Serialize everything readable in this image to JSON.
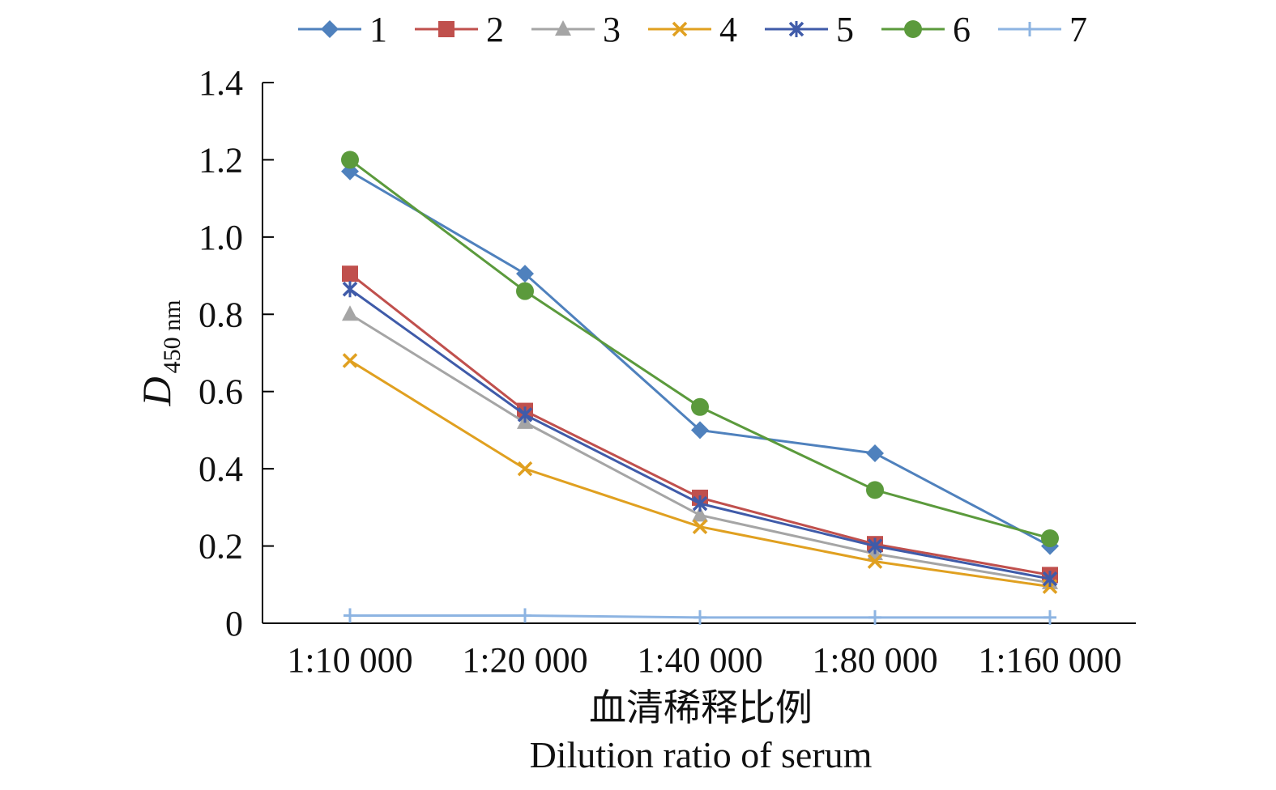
{
  "chart_data": {
    "type": "line",
    "categories": [
      "1:10 000",
      "1:20 000",
      "1:40 000",
      "1:80 000",
      "1:160 000"
    ],
    "series": [
      {
        "name": "1",
        "color": "#4f81bd",
        "marker": "diamond",
        "values": [
          1.17,
          0.905,
          0.5,
          0.44,
          0.2
        ]
      },
      {
        "name": "2",
        "color": "#c0504d",
        "marker": "square",
        "values": [
          0.905,
          0.55,
          0.325,
          0.205,
          0.125
        ]
      },
      {
        "name": "3",
        "color": "#a5a5a5",
        "marker": "triangle",
        "values": [
          0.8,
          0.52,
          0.28,
          0.18,
          0.105
        ]
      },
      {
        "name": "4",
        "color": "#e0a020",
        "marker": "x",
        "values": [
          0.68,
          0.4,
          0.25,
          0.16,
          0.095
        ]
      },
      {
        "name": "5",
        "color": "#3f5ba9",
        "marker": "star",
        "values": [
          0.865,
          0.54,
          0.31,
          0.2,
          0.115
        ]
      },
      {
        "name": "6",
        "color": "#5b9a3c",
        "marker": "circle",
        "values": [
          1.2,
          0.86,
          0.56,
          0.345,
          0.22
        ]
      },
      {
        "name": "7",
        "color": "#8db4e2",
        "marker": "plus",
        "values": [
          0.02,
          0.02,
          0.015,
          0.015,
          0.015
        ]
      }
    ],
    "xlabel": "血清稀释比例",
    "xlabel_en": "Dilution ratio of serum",
    "ylabel": "D",
    "ylabel_sub": "450 nm",
    "ylim": [
      0,
      1.4
    ],
    "yticks": [
      0,
      0.2,
      0.4,
      0.6,
      0.8,
      1.0,
      1.2,
      1.4
    ],
    "ytick_labels": [
      "0",
      "0.2",
      "0.4",
      "0.6",
      "0.8",
      "1.0",
      "1.2",
      "1.4"
    ],
    "grid": false,
    "legend_position": "top"
  }
}
